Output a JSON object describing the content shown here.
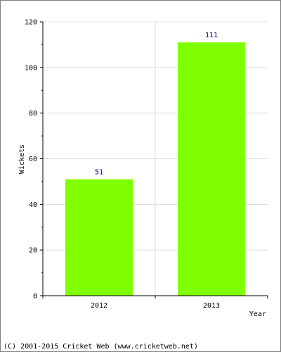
{
  "chart_data": {
    "type": "bar",
    "categories": [
      "2012",
      "2013"
    ],
    "values": [
      51,
      111
    ],
    "title": "",
    "xlabel": "Year",
    "ylabel": "Wickets",
    "ylim": [
      0,
      120
    ],
    "yticks": [
      0,
      20,
      40,
      60,
      80,
      100,
      120
    ],
    "grid": true,
    "legend": "none",
    "colors": {
      "bar": "#80ff00",
      "data_label": "#000080",
      "grid": "#dcdcdc",
      "axis": "#000000",
      "frame": "#808080"
    }
  },
  "footer": {
    "copyright": "(C) 2001-2015 Cricket Web (www.cricketweb.net)"
  }
}
